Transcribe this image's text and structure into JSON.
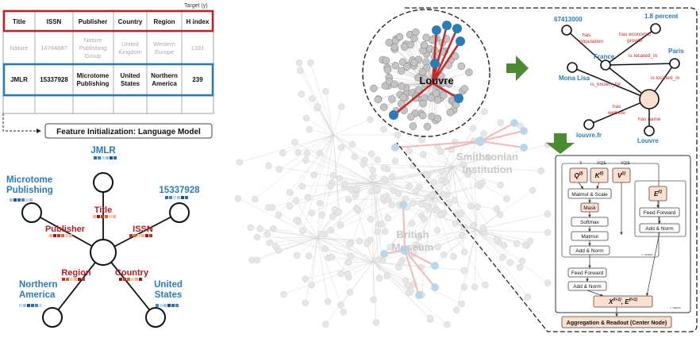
{
  "table": {
    "target_label": "Target  (y)",
    "headers": [
      "Title",
      "ISSN",
      "Publisher",
      "Country",
      "Region",
      "H index"
    ],
    "row_nature": [
      "Nature",
      "14764687",
      "Nature Publishing Group",
      "United Kingdom",
      "Western Europe",
      "1331"
    ],
    "row_jmlr": [
      "JMLR",
      "15337928",
      "Microtome Publishing",
      "United States",
      "Northern America",
      "239"
    ]
  },
  "feature_init_label": "Feature Initialization: Language Model",
  "star_graph": {
    "jmlr": "JMLR",
    "microtome": "Microtome Publishing",
    "issn_value": "15337928",
    "northern_america": "Northern America",
    "united_states": "United States",
    "edge_title": "Title",
    "edge_publisher": "Publisher",
    "edge_issn": "ISSN",
    "edge_region": "Region",
    "edge_country": "Country"
  },
  "big_graph": {
    "louvre": "Louvre",
    "smithsonian": "Smithsonian Institution",
    "british_museum": "British Museum"
  },
  "kg": {
    "population": "67413000",
    "growth": "1.8 percent",
    "france": "France",
    "paris": "Paris",
    "mona_lisa": "Mona Lisa",
    "louvre_fr": "louvre.fr",
    "louvre": "Louvre",
    "rel_has_population": "has population",
    "rel_has_econ_growth": "has economic growth",
    "rel_is_located_in_1": "is located_in",
    "rel_is_located_in_2": "is located_in",
    "rel_is_known_for": "is_known_for",
    "rel_has_website": "has website",
    "rel_has_name": "has name"
  },
  "transformer": {
    "x": "X",
    "xwq": "XQ|E",
    "xwk": "XQ|E",
    "q": "Q",
    "k": "K",
    "v": "V",
    "e": "E",
    "matmul_scale": "Matmul & Scale",
    "mask": "Mask",
    "softmax": "Softmax",
    "matmul": "Matmul",
    "add_norm_1": "Add & Norm",
    "feed_forward_right": "Feed Forward",
    "add_norm_right": "Add & Norm",
    "feed_forward": "Feed Forward",
    "add_norm_2": "Add & Norm",
    "out_x": "X",
    "out_e": "E",
    "heads_note": "× heads",
    "layers_note": "× layers",
    "readout": "Aggregation & Readout (Center Node)"
  }
}
